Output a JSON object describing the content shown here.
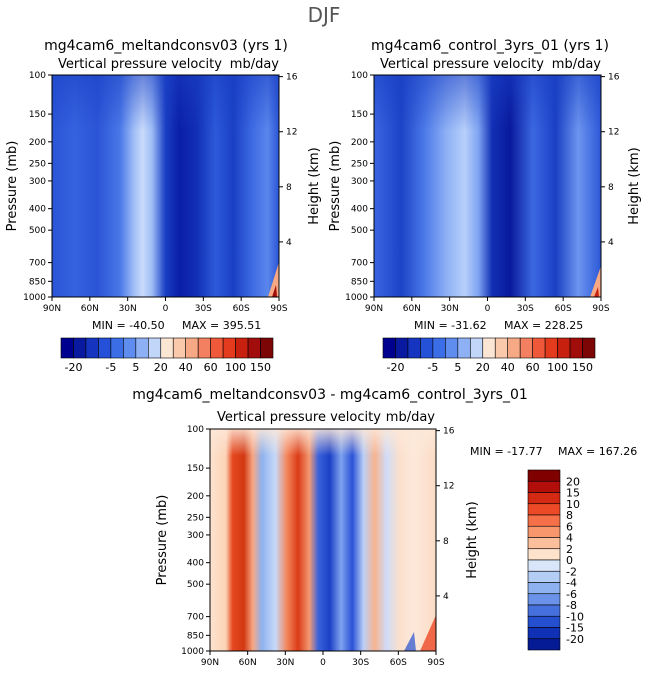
{
  "figure": {
    "title": "DJF"
  },
  "chart_data": [
    {
      "type": "heatmap",
      "title": "mg4cam6_meltandconsv03 (yrs 1)",
      "subtitle_left": "Vertical pressure velocity",
      "subtitle_right": "mb/day",
      "xlabel": "",
      "ylabel_left": "Pressure (mb)",
      "ylabel_right": "Height (km)",
      "x_ticks": [
        "90N",
        "60N",
        "30N",
        "0",
        "30S",
        "60S",
        "90S"
      ],
      "y_ticks": [
        "100",
        "150",
        "200",
        "250",
        "300",
        "400",
        "500",
        "700",
        "850",
        "1000"
      ],
      "height_ticks": [
        "4",
        "8",
        "12",
        "16"
      ],
      "min_label": "MIN = -40.50",
      "max_label": "MAX = 395.51",
      "min": -40.5,
      "max": 395.51
    },
    {
      "type": "heatmap",
      "title": "mg4cam6_control_3yrs_01 (yrs 1)",
      "subtitle_left": "Vertical pressure velocity",
      "subtitle_right": "mb/day",
      "xlabel": "",
      "ylabel_left": "Pressure (mb)",
      "ylabel_right": "Height (km)",
      "x_ticks": [
        "90N",
        "60N",
        "30N",
        "0",
        "30S",
        "60S",
        "90S"
      ],
      "y_ticks": [
        "100",
        "150",
        "200",
        "250",
        "300",
        "400",
        "500",
        "700",
        "850",
        "1000"
      ],
      "height_ticks": [
        "4",
        "8",
        "12",
        "16"
      ],
      "min_label": "MIN = -31.62",
      "max_label": "MAX = 228.25",
      "min": -31.62,
      "max": 228.25
    },
    {
      "type": "heatmap",
      "title": "mg4cam6_meltandconsv03 - mg4cam6_control_3yrs_01",
      "subtitle_left": "Vertical pressure velocity",
      "subtitle_right": "mb/day",
      "xlabel": "",
      "ylabel_left": "Pressure (mb)",
      "ylabel_right": "Height (km)",
      "x_ticks": [
        "90N",
        "60N",
        "30N",
        "0",
        "30S",
        "60S",
        "90S"
      ],
      "y_ticks": [
        "100",
        "150",
        "200",
        "250",
        "300",
        "400",
        "500",
        "700",
        "850",
        "1000"
      ],
      "height_ticks": [
        "4",
        "8",
        "12",
        "16"
      ],
      "min_label": "MIN = -17.77",
      "max_label": "MAX = 167.26",
      "min": -17.77,
      "max": 167.26
    }
  ],
  "colorbars": {
    "absolute": {
      "orientation": "horizontal",
      "levels": [
        -20,
        -15,
        -10,
        -5,
        0,
        5,
        10,
        20,
        30,
        40,
        50,
        60,
        80,
        100,
        120,
        150
      ],
      "labels": [
        "-20",
        "-5",
        "5",
        "20",
        "40",
        "60",
        "100",
        "150"
      ],
      "colors": [
        "#00008f",
        "#0a1aa0",
        "#1535c0",
        "#2550d8",
        "#3b6ee6",
        "#5e8def",
        "#8eb0f5",
        "#c2d6fa",
        "#fbe6d3",
        "#fac9ab",
        "#f7a885",
        "#f38060",
        "#ef5838",
        "#e43a1d",
        "#c8200f",
        "#a00d0a",
        "#7c0505"
      ]
    },
    "difference": {
      "orientation": "vertical",
      "levels": [
        20,
        15,
        10,
        8,
        6,
        4,
        2,
        0,
        -2,
        -4,
        -6,
        -8,
        -10,
        -15,
        -20
      ],
      "labels": [
        "20",
        "15",
        "10",
        "8",
        "6",
        "4",
        "2",
        "0",
        "-2",
        "-4",
        "-6",
        "-8",
        "-10",
        "-15",
        "-20"
      ],
      "colors": [
        "#800000",
        "#b20f0a",
        "#d42a14",
        "#ec4a26",
        "#f57048",
        "#f8966e",
        "#fbbf9c",
        "#fde2cc",
        "#d9e6fa",
        "#b3cdf4",
        "#8eb2ef",
        "#6992e8",
        "#4670dd",
        "#2450d0",
        "#1030b5",
        "#051a95"
      ]
    }
  }
}
